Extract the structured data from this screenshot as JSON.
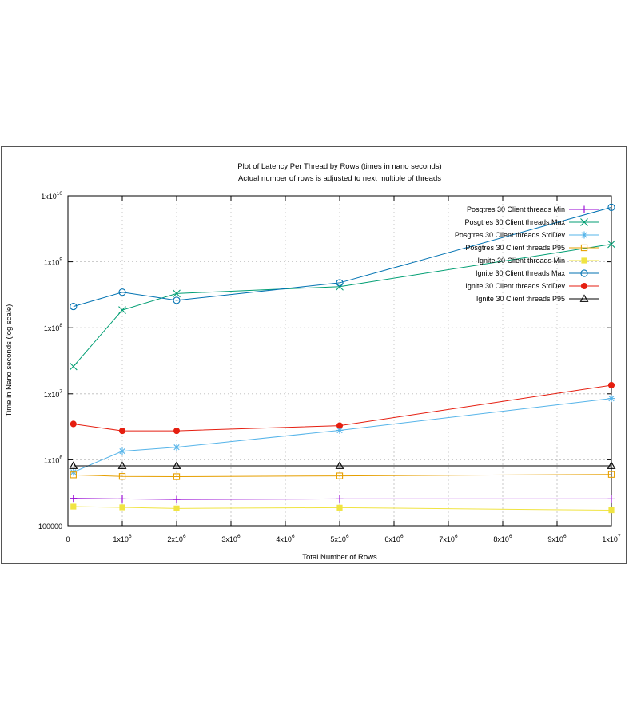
{
  "chart_data": {
    "type": "line",
    "title": "Plot of Latency Per Thread by Rows (times in nano seconds)",
    "subtitle": "Actual number of rows is adjusted to next multiple of threads",
    "xlabel": "Total Number of Rows",
    "ylabel": "Time in Nano seconds (log scale)",
    "x_scale": "linear",
    "y_scale": "log10",
    "xlim": [
      0,
      10000000
    ],
    "ylim": [
      100000,
      10000000000
    ],
    "grid": true,
    "legend_position": "top-right",
    "x_ticks": [
      {
        "value": 0,
        "base": "0",
        "exp": ""
      },
      {
        "value": 1000000,
        "base": "1x10",
        "exp": "6"
      },
      {
        "value": 2000000,
        "base": "2x10",
        "exp": "6"
      },
      {
        "value": 3000000,
        "base": "3x10",
        "exp": "6"
      },
      {
        "value": 4000000,
        "base": "4x10",
        "exp": "6"
      },
      {
        "value": 5000000,
        "base": "5x10",
        "exp": "6"
      },
      {
        "value": 6000000,
        "base": "6x10",
        "exp": "6"
      },
      {
        "value": 7000000,
        "base": "7x10",
        "exp": "6"
      },
      {
        "value": 8000000,
        "base": "8x10",
        "exp": "6"
      },
      {
        "value": 9000000,
        "base": "9x10",
        "exp": "6"
      },
      {
        "value": 10000000,
        "base": "1x10",
        "exp": "7"
      }
    ],
    "y_ticks": [
      {
        "value": 100000,
        "base": "100000",
        "exp": ""
      },
      {
        "value": 1000000,
        "base": "1x10",
        "exp": "6"
      },
      {
        "value": 10000000,
        "base": "1x10",
        "exp": "7"
      },
      {
        "value": 100000000,
        "base": "1x10",
        "exp": "8"
      },
      {
        "value": 1000000000,
        "base": "1x10",
        "exp": "9"
      },
      {
        "value": 10000000000,
        "base": "1x10",
        "exp": "10"
      }
    ],
    "x": [
      100000,
      1000000,
      2000000,
      5000000,
      10000000
    ],
    "series": [
      {
        "name": "Posgtres 30 Client threads Min",
        "color": "#9400d3",
        "marker": "plus",
        "values": [
          260000,
          255000,
          250000,
          255000,
          255000
        ]
      },
      {
        "name": "Posgtres 30 Client threads Max",
        "color": "#009e73",
        "marker": "cross",
        "values": [
          26000000,
          185000000,
          330000000,
          420000000,
          1850000000
        ]
      },
      {
        "name": "Posgtres 30 Client threads StdDev",
        "color": "#56b4e9",
        "marker": "asterisk",
        "values": [
          650000,
          1350000,
          1550000,
          2800000,
          8500000
        ]
      },
      {
        "name": "Posgtres 30 Client threads P95",
        "color": "#e69f00",
        "marker": "open-square",
        "values": [
          590000,
          560000,
          555000,
          570000,
          600000
        ]
      },
      {
        "name": "Ignite 30 Client threads Min",
        "color": "#f0e442",
        "marker": "filled-square",
        "values": [
          195000,
          190000,
          183000,
          188000,
          172000
        ]
      },
      {
        "name": "Ignite 30 Client threads Max",
        "color": "#0072b2",
        "marker": "open-circle",
        "values": [
          210000000,
          345000000,
          260000000,
          480000000,
          6700000000
        ]
      },
      {
        "name": "Ignite 30 Client threads StdDev",
        "color": "#e51e10",
        "marker": "filled-circle",
        "values": [
          3500000,
          2750000,
          2750000,
          3300000,
          13500000
        ]
      },
      {
        "name": "Ignite 30 Client threads P95",
        "color": "#000000",
        "marker": "open-triangle",
        "values": [
          810000,
          810000,
          810000,
          810000,
          810000
        ]
      }
    ]
  }
}
